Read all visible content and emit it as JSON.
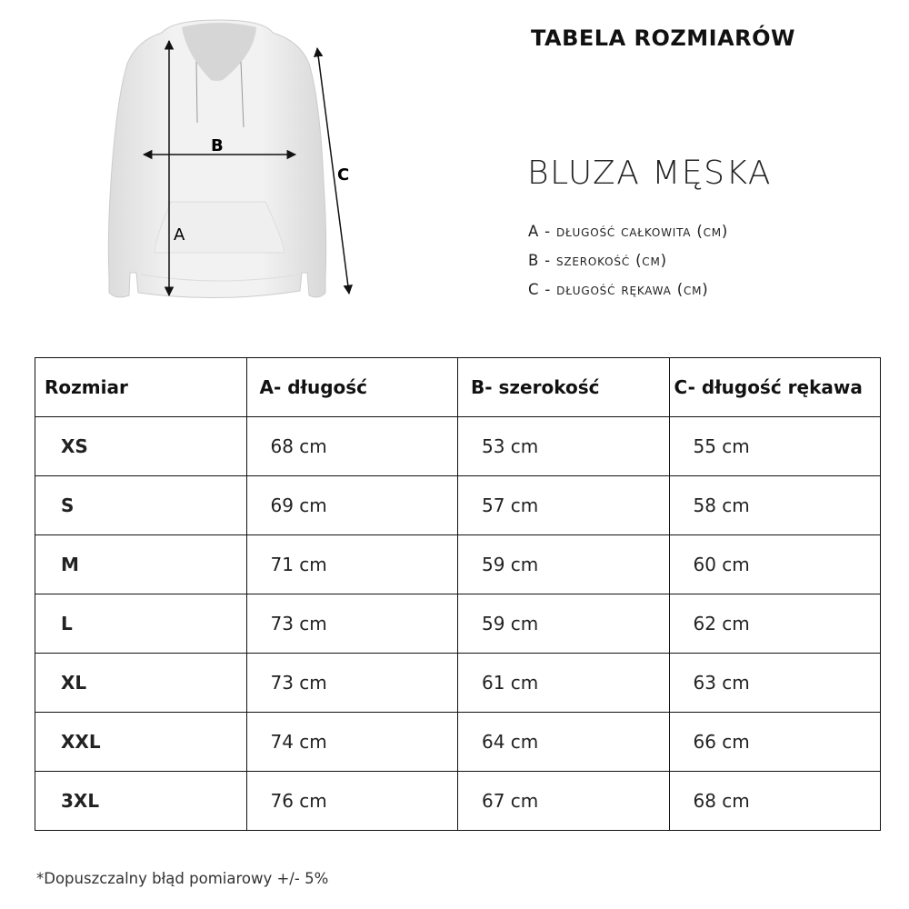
{
  "header": {
    "title": "TABELA ROZMIARÓW",
    "product": "BLUZA MĘSKA"
  },
  "diagram": {
    "label_a": "A",
    "label_b": "B",
    "label_c": "C"
  },
  "legend": [
    {
      "key": "A",
      "text": "długość całkowita (cm)"
    },
    {
      "key": "B",
      "text": "szerokość (cm)"
    },
    {
      "key": "C",
      "text": "długość rękawa (cm)"
    }
  ],
  "table": {
    "headers": [
      "Rozmiar",
      "A- długość",
      "B- szerokość",
      "C- długość rękawa"
    ],
    "rows": [
      [
        "XS",
        "68 cm",
        "53 cm",
        "55 cm"
      ],
      [
        "S",
        "69 cm",
        "57 cm",
        "58 cm"
      ],
      [
        "M",
        "71 cm",
        "59 cm",
        "60 cm"
      ],
      [
        "L",
        "73 cm",
        "59 cm",
        "62 cm"
      ],
      [
        "XL",
        "73 cm",
        "61 cm",
        "63 cm"
      ],
      [
        "XXL",
        "74 cm",
        "64 cm",
        "66 cm"
      ],
      [
        "3XL",
        "76 cm",
        "67 cm",
        "68 cm"
      ]
    ]
  },
  "note": "*Dopuszczalny błąd pomiarowy +/- 5%"
}
